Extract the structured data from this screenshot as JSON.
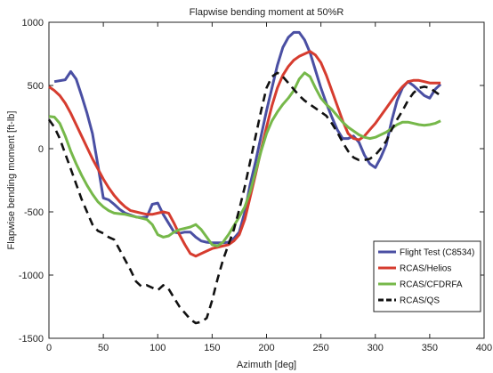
{
  "chart_data": {
    "type": "line",
    "title": "Flapwise bending moment at 50%R",
    "xlabel": "Azimuth [deg]",
    "ylabel": "Flapwise bending moment [ft-lb]",
    "xlim": [
      0,
      400
    ],
    "ylim": [
      -1500,
      1000
    ],
    "xticks": [
      0,
      50,
      100,
      150,
      200,
      250,
      300,
      350,
      400
    ],
    "yticks": [
      -1500,
      -1000,
      -500,
      0,
      500,
      1000
    ],
    "grid": false,
    "legend_position": "bottom-right",
    "series": [
      {
        "name": "Flight Test (C8534)",
        "color": "#4a4fa3",
        "dash": "solid",
        "x": [
          5,
          15,
          20,
          25,
          30,
          35,
          40,
          45,
          50,
          55,
          60,
          65,
          70,
          75,
          80,
          85,
          90,
          95,
          100,
          105,
          110,
          115,
          120,
          125,
          130,
          135,
          140,
          145,
          150,
          155,
          160,
          165,
          170,
          175,
          180,
          185,
          190,
          195,
          200,
          205,
          210,
          215,
          220,
          225,
          230,
          235,
          240,
          245,
          250,
          255,
          260,
          265,
          270,
          275,
          280,
          285,
          290,
          295,
          300,
          305,
          310,
          315,
          320,
          325,
          330,
          335,
          340,
          345,
          350,
          355,
          360
        ],
        "y": [
          530,
          545,
          610,
          550,
          420,
          280,
          120,
          -130,
          -390,
          -405,
          -440,
          -480,
          -510,
          -525,
          -540,
          -545,
          -540,
          -440,
          -430,
          -520,
          -590,
          -660,
          -670,
          -660,
          -660,
          -700,
          -730,
          -740,
          -745,
          -745,
          -745,
          -740,
          -710,
          -660,
          -500,
          -280,
          -100,
          100,
          300,
          480,
          660,
          800,
          880,
          920,
          920,
          860,
          760,
          620,
          480,
          360,
          250,
          150,
          80,
          80,
          100,
          50,
          -50,
          -120,
          -150,
          -70,
          30,
          220,
          380,
          480,
          530,
          500,
          460,
          420,
          400,
          470,
          510
        ],
        "x_note": "",
        "values_raw": []
      },
      {
        "name": "RCAS/Helios",
        "color": "#d63c2f",
        "dash": "solid",
        "x": [
          0,
          5,
          10,
          15,
          20,
          25,
          30,
          35,
          40,
          45,
          50,
          55,
          60,
          65,
          70,
          75,
          80,
          85,
          90,
          95,
          100,
          105,
          110,
          115,
          120,
          125,
          130,
          135,
          140,
          145,
          150,
          155,
          160,
          165,
          170,
          175,
          180,
          185,
          190,
          195,
          200,
          205,
          210,
          215,
          220,
          225,
          230,
          235,
          240,
          245,
          250,
          255,
          260,
          265,
          270,
          275,
          280,
          285,
          290,
          295,
          300,
          305,
          310,
          315,
          320,
          325,
          330,
          335,
          340,
          345,
          350,
          355,
          360
        ],
        "y": [
          490,
          460,
          420,
          360,
          280,
          190,
          100,
          10,
          -80,
          -160,
          -240,
          -310,
          -370,
          -420,
          -460,
          -490,
          -500,
          -510,
          -520,
          -520,
          -510,
          -500,
          -510,
          -590,
          -680,
          -760,
          -830,
          -850,
          -830,
          -810,
          -790,
          -780,
          -770,
          -760,
          -730,
          -680,
          -560,
          -380,
          -200,
          -10,
          170,
          340,
          480,
          580,
          650,
          700,
          730,
          750,
          770,
          740,
          680,
          580,
          460,
          340,
          220,
          120,
          80,
          70,
          100,
          150,
          200,
          260,
          320,
          380,
          440,
          490,
          530,
          540,
          540,
          530,
          520,
          520,
          520
        ]
      },
      {
        "name": "RCAS/CFDRFA",
        "color": "#76b84a",
        "dash": "solid",
        "x": [
          0,
          5,
          10,
          15,
          20,
          25,
          30,
          35,
          40,
          45,
          50,
          55,
          60,
          65,
          70,
          75,
          80,
          85,
          90,
          95,
          100,
          105,
          110,
          115,
          120,
          125,
          130,
          135,
          140,
          145,
          150,
          155,
          160,
          165,
          170,
          175,
          180,
          185,
          190,
          195,
          200,
          205,
          210,
          215,
          220,
          225,
          230,
          235,
          240,
          245,
          250,
          255,
          260,
          265,
          270,
          275,
          280,
          285,
          290,
          295,
          300,
          305,
          310,
          315,
          320,
          325,
          330,
          335,
          340,
          345,
          350,
          355,
          360
        ],
        "y": [
          255,
          250,
          200,
          100,
          -20,
          -120,
          -210,
          -290,
          -360,
          -420,
          -460,
          -490,
          -510,
          -515,
          -520,
          -530,
          -540,
          -550,
          -560,
          -600,
          -680,
          -700,
          -690,
          -660,
          -640,
          -630,
          -620,
          -600,
          -640,
          -700,
          -760,
          -770,
          -740,
          -680,
          -610,
          -540,
          -460,
          -340,
          -180,
          -20,
          120,
          220,
          290,
          350,
          400,
          460,
          550,
          600,
          570,
          480,
          400,
          350,
          310,
          260,
          210,
          170,
          140,
          110,
          90,
          80,
          90,
          110,
          130,
          160,
          190,
          210,
          210,
          200,
          190,
          185,
          190,
          200,
          220
        ]
      },
      {
        "name": "RCAS/QS",
        "color": "#111111",
        "dash": "dashed",
        "x": [
          0,
          5,
          10,
          15,
          20,
          25,
          30,
          35,
          40,
          45,
          50,
          55,
          60,
          65,
          70,
          75,
          80,
          85,
          90,
          95,
          100,
          105,
          110,
          115,
          120,
          125,
          130,
          135,
          140,
          145,
          150,
          155,
          160,
          165,
          170,
          175,
          180,
          185,
          190,
          195,
          200,
          205,
          210,
          215,
          220,
          225,
          230,
          235,
          240,
          245,
          250,
          255,
          260,
          265,
          270,
          275,
          280,
          285,
          290,
          295,
          300,
          305,
          310,
          315,
          320,
          325,
          330,
          335,
          340,
          345,
          350,
          355,
          360
        ],
        "y": [
          230,
          170,
          80,
          -40,
          -160,
          -280,
          -400,
          -500,
          -600,
          -650,
          -670,
          -700,
          -720,
          -800,
          -880,
          -960,
          -1050,
          -1090,
          -1080,
          -1100,
          -1120,
          -1080,
          -1110,
          -1180,
          -1250,
          -1300,
          -1350,
          -1380,
          -1370,
          -1340,
          -1200,
          -1030,
          -880,
          -760,
          -640,
          -480,
          -300,
          -100,
          100,
          300,
          480,
          570,
          600,
          570,
          520,
          470,
          420,
          380,
          350,
          320,
          290,
          260,
          200,
          130,
          50,
          -20,
          -70,
          -90,
          -90,
          -80,
          -50,
          0,
          60,
          150,
          230,
          300,
          380,
          440,
          480,
          490,
          480,
          450,
          420
        ]
      }
    ]
  }
}
